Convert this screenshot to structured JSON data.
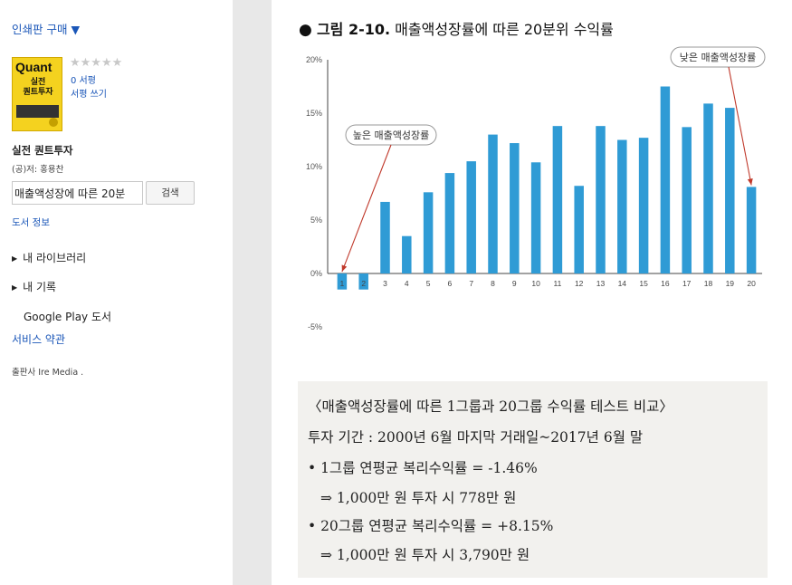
{
  "sidebar": {
    "buy_link": "인쇄판 구매 ▼",
    "cover": {
      "brand": "Quant",
      "title_line1": "실전",
      "title_line2": "퀀트투자"
    },
    "stars": "★★★★★",
    "review_count": "0 서평",
    "write_review": "서평 쓰기",
    "book_title": "실전 퀀트투자",
    "author": "(공)저: 홍용찬",
    "search_value": "매출액성장에 따른 20분",
    "search_button": "검색",
    "book_info": "도서 정보",
    "nav": [
      {
        "label": "내 라이브러리"
      },
      {
        "label": "내 기록"
      }
    ],
    "google_play": "Google Play 도서",
    "terms": "서비스 약관",
    "publisher": "출판사 Ire Media ."
  },
  "figure": {
    "bullet": "●",
    "number": "그림 2-10.",
    "caption": "매출액성장률에 따른 20분위 수익률"
  },
  "chart_data": {
    "type": "bar",
    "categories": [
      "1",
      "2",
      "3",
      "4",
      "5",
      "6",
      "7",
      "8",
      "9",
      "10",
      "11",
      "12",
      "13",
      "14",
      "15",
      "16",
      "17",
      "18",
      "19",
      "20"
    ],
    "values": [
      -1.5,
      -1.5,
      6.7,
      3.5,
      7.6,
      9.4,
      10.5,
      13.0,
      12.2,
      10.4,
      13.8,
      8.2,
      13.8,
      12.5,
      12.7,
      17.5,
      13.7,
      15.9,
      15.5,
      8.1
    ],
    "yticks": [
      "20%",
      "15%",
      "10%",
      "5%",
      "0%",
      "-5%"
    ],
    "ylim": [
      -5,
      20
    ],
    "bar_color": "#2f9bd5",
    "annotations": [
      {
        "text": "높은 매출액성장률",
        "target": "1"
      },
      {
        "text": "낮은 매출액성장률",
        "target": "20"
      }
    ]
  },
  "summary": {
    "lines": [
      "〈매출액성장률에 따른 1그룹과 20그룹 수익률 테스트 비교〉",
      "투자 기간 : 2000년 6월 마지막 거래일~2017년 6월 말",
      "• 1그룹 연평균 복리수익률 = -1.46%",
      "⇒ 1,000만 원 투자 시 778만 원",
      "• 20그룹 연평균 복리수익률 = +8.15%",
      "⇒ 1,000만 원 투자 시 3,790만 원"
    ]
  }
}
